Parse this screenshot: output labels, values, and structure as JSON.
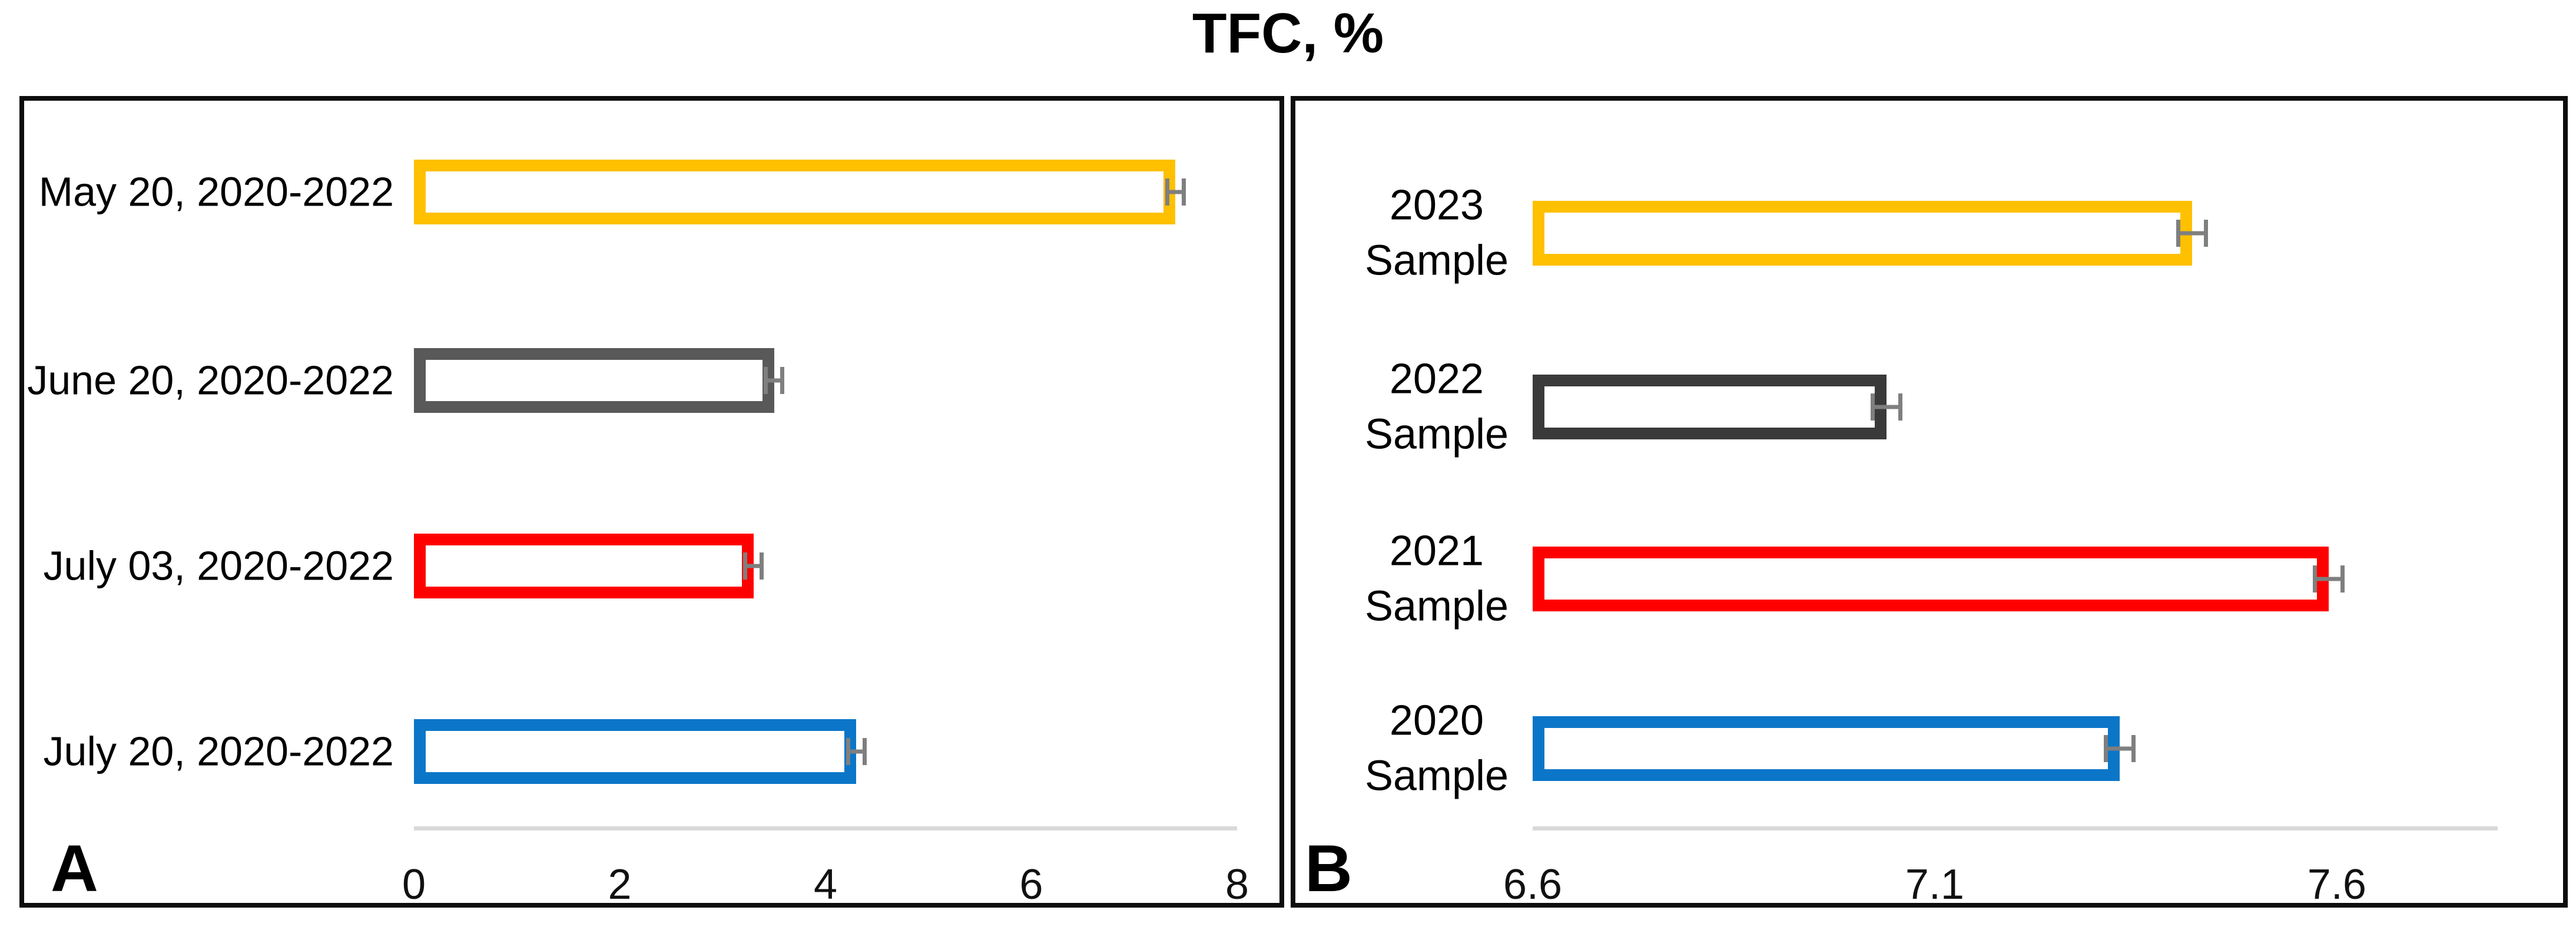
{
  "title": "TFC, %",
  "chart_data": [
    {
      "type": "bar",
      "panel_label": "A",
      "orientation": "horizontal",
      "title": "TFC, %",
      "categories": [
        "May 20, 2020-2022",
        "June 20, 2020-2022",
        "July 03, 2020-2022",
        "July 20, 2020-2022"
      ],
      "values": [
        7.4,
        3.5,
        3.3,
        4.3
      ],
      "errors": [
        0.1,
        0.1,
        0.1,
        0.1
      ],
      "bar_colors": [
        "#FFC000",
        "#595959",
        "#FF0000",
        "#0B76C8"
      ],
      "bar_fill": "#FFFFFF",
      "xlim": [
        0,
        8
      ],
      "xticks": [
        0,
        2,
        4,
        6,
        8
      ],
      "xtick_labels": [
        "0",
        "2",
        "4",
        "6",
        "8"
      ],
      "axis_line_color": "#D9D9D9",
      "error_bar_color": "#7F7F7F",
      "grid": false,
      "legend": null
    },
    {
      "type": "bar",
      "panel_label": "B",
      "orientation": "horizontal",
      "title": "TFC, %",
      "categories": [
        "2023\nSample",
        "2022\nSample",
        "2021\nSample",
        "2020\nSample"
      ],
      "values": [
        7.42,
        7.04,
        7.59,
        7.33
      ],
      "errors": [
        0.02,
        0.02,
        0.02,
        0.02
      ],
      "bar_colors": [
        "#FFC000",
        "#3A3A3A",
        "#FF0000",
        "#0B76C8"
      ],
      "bar_fill": "#FFFFFF",
      "xlim": [
        6.6,
        7.8
      ],
      "xticks": [
        6.6,
        7.1,
        7.6
      ],
      "xtick_labels": [
        "6.6",
        "7.1",
        "7.6"
      ],
      "axis_line_color": "#D9D9D9",
      "error_bar_color": "#7F7F7F",
      "grid": false,
      "legend": null
    }
  ]
}
